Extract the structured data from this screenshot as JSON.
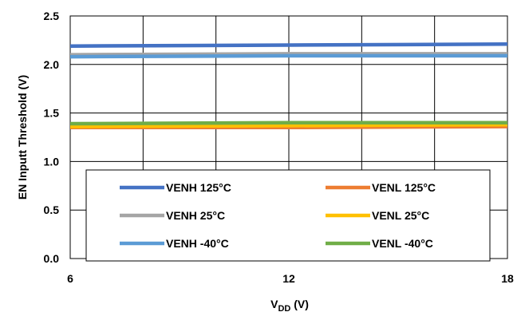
{
  "chart_data": {
    "type": "line",
    "title": "",
    "xlabel_main": "V",
    "xlabel_sub": "DD",
    "xlabel_unit": " (V)",
    "ylabel": "EN Inputt Threshold (V)",
    "xlim": [
      6,
      18
    ],
    "ylim": [
      0,
      2.5
    ],
    "x_ticks": [
      "6",
      "12",
      "18"
    ],
    "y_ticks": [
      "0.0",
      "0.5",
      "1.0",
      "1.5",
      "2.0",
      "2.5"
    ],
    "x_gridlines": [
      6,
      8,
      10,
      12,
      14,
      16,
      18
    ],
    "y_gridlines": [
      0,
      0.5,
      1.0,
      1.5,
      2.0,
      2.5
    ],
    "grid": true,
    "legend_position": "bottom-center",
    "x": [
      6,
      12,
      18
    ],
    "series": [
      {
        "name": "VENH 125°C",
        "color": "#4472C4",
        "values": [
          2.19,
          2.2,
          2.21
        ]
      },
      {
        "name": "VENL 125°C",
        "color": "#ED7D31",
        "values": [
          1.35,
          1.35,
          1.36
        ]
      },
      {
        "name": "VENH 25°C",
        "color": "#A5A5A5",
        "values": [
          2.1,
          2.11,
          2.11
        ]
      },
      {
        "name": "VENL 25°C",
        "color": "#FFC000",
        "values": [
          1.36,
          1.37,
          1.38
        ]
      },
      {
        "name": "VENH -40°C",
        "color": "#5B9BD5",
        "values": [
          2.08,
          2.09,
          2.09
        ]
      },
      {
        "name": "VENL -40°C",
        "color": "#70AD47",
        "values": [
          1.39,
          1.4,
          1.4
        ]
      }
    ]
  }
}
